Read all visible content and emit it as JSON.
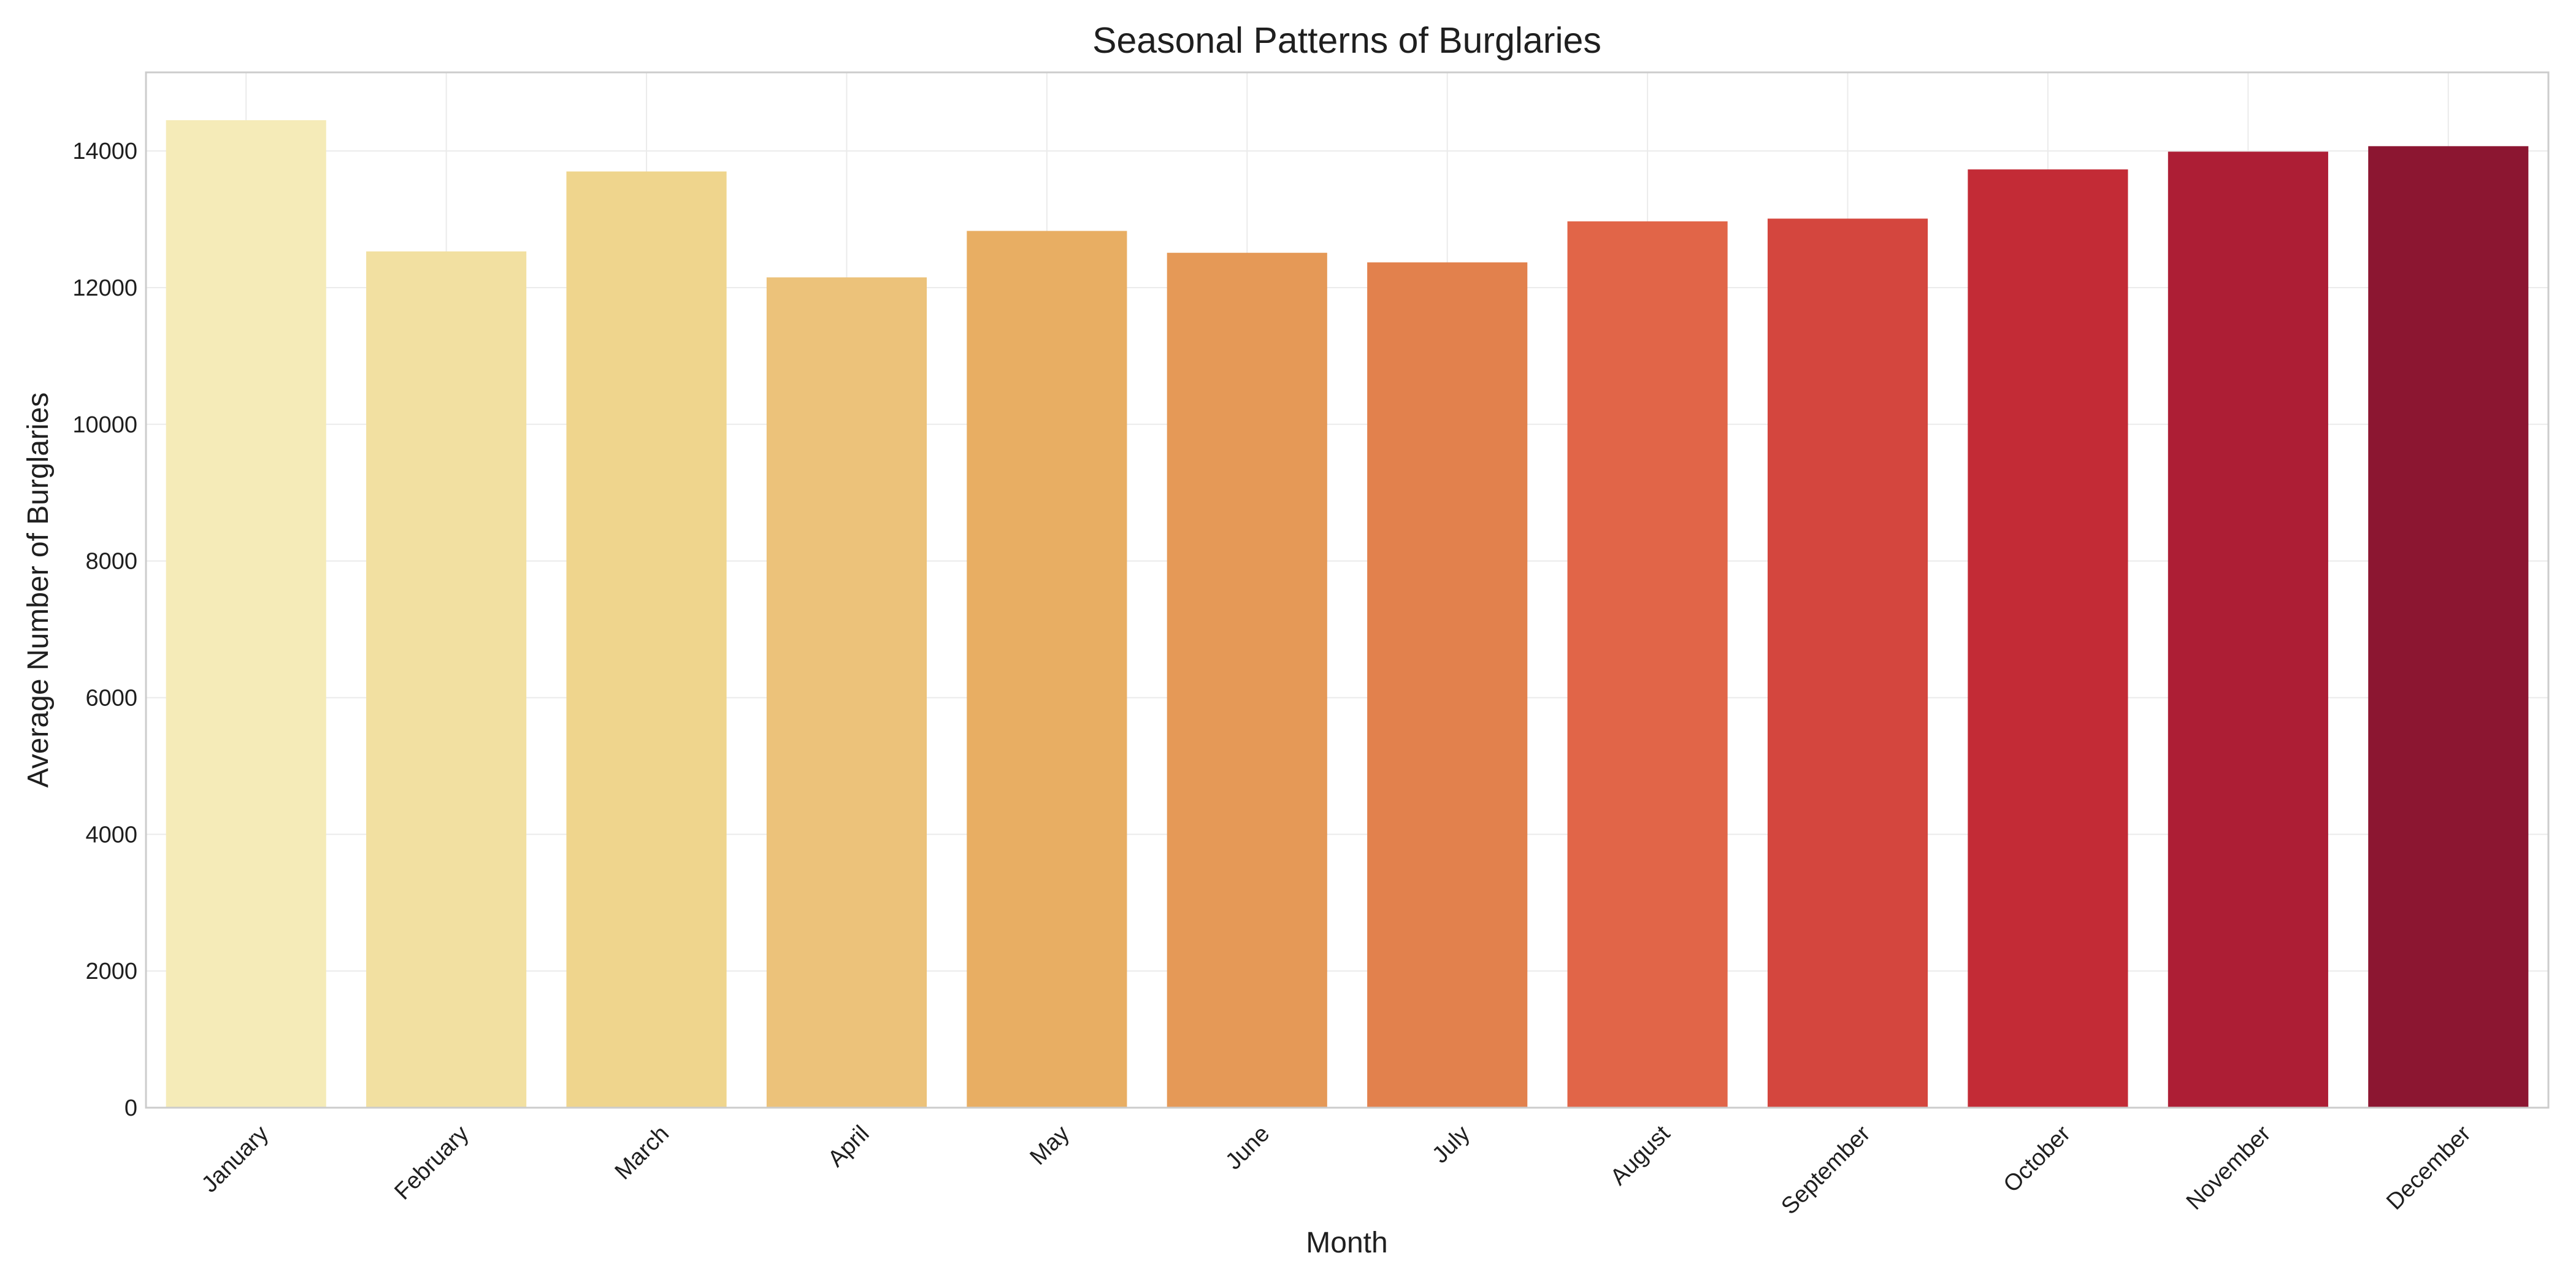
{
  "chart_data": {
    "type": "bar",
    "title": "Seasonal Patterns of Burglaries",
    "xlabel": "Month",
    "ylabel": "Average Number of Burglaries",
    "categories": [
      "January",
      "February",
      "March",
      "April",
      "May",
      "June",
      "July",
      "August",
      "September",
      "October",
      "November",
      "December"
    ],
    "values": [
      14450,
      12530,
      13700,
      12150,
      12830,
      12510,
      12370,
      12970,
      13010,
      13730,
      13990,
      14070
    ],
    "ylim": [
      0,
      15150
    ],
    "yticks": [
      0,
      2000,
      4000,
      6000,
      8000,
      10000,
      12000,
      14000
    ],
    "grid": true,
    "legend": "none",
    "colors": [
      "#f5ebb8",
      "#f2e0a1",
      "#efd58d",
      "#ecc27a",
      "#e8ae63",
      "#e59957",
      "#e2814d",
      "#e16548",
      "#d4463e",
      "#c32b36",
      "#ad1e35",
      "#8c1631"
    ]
  }
}
